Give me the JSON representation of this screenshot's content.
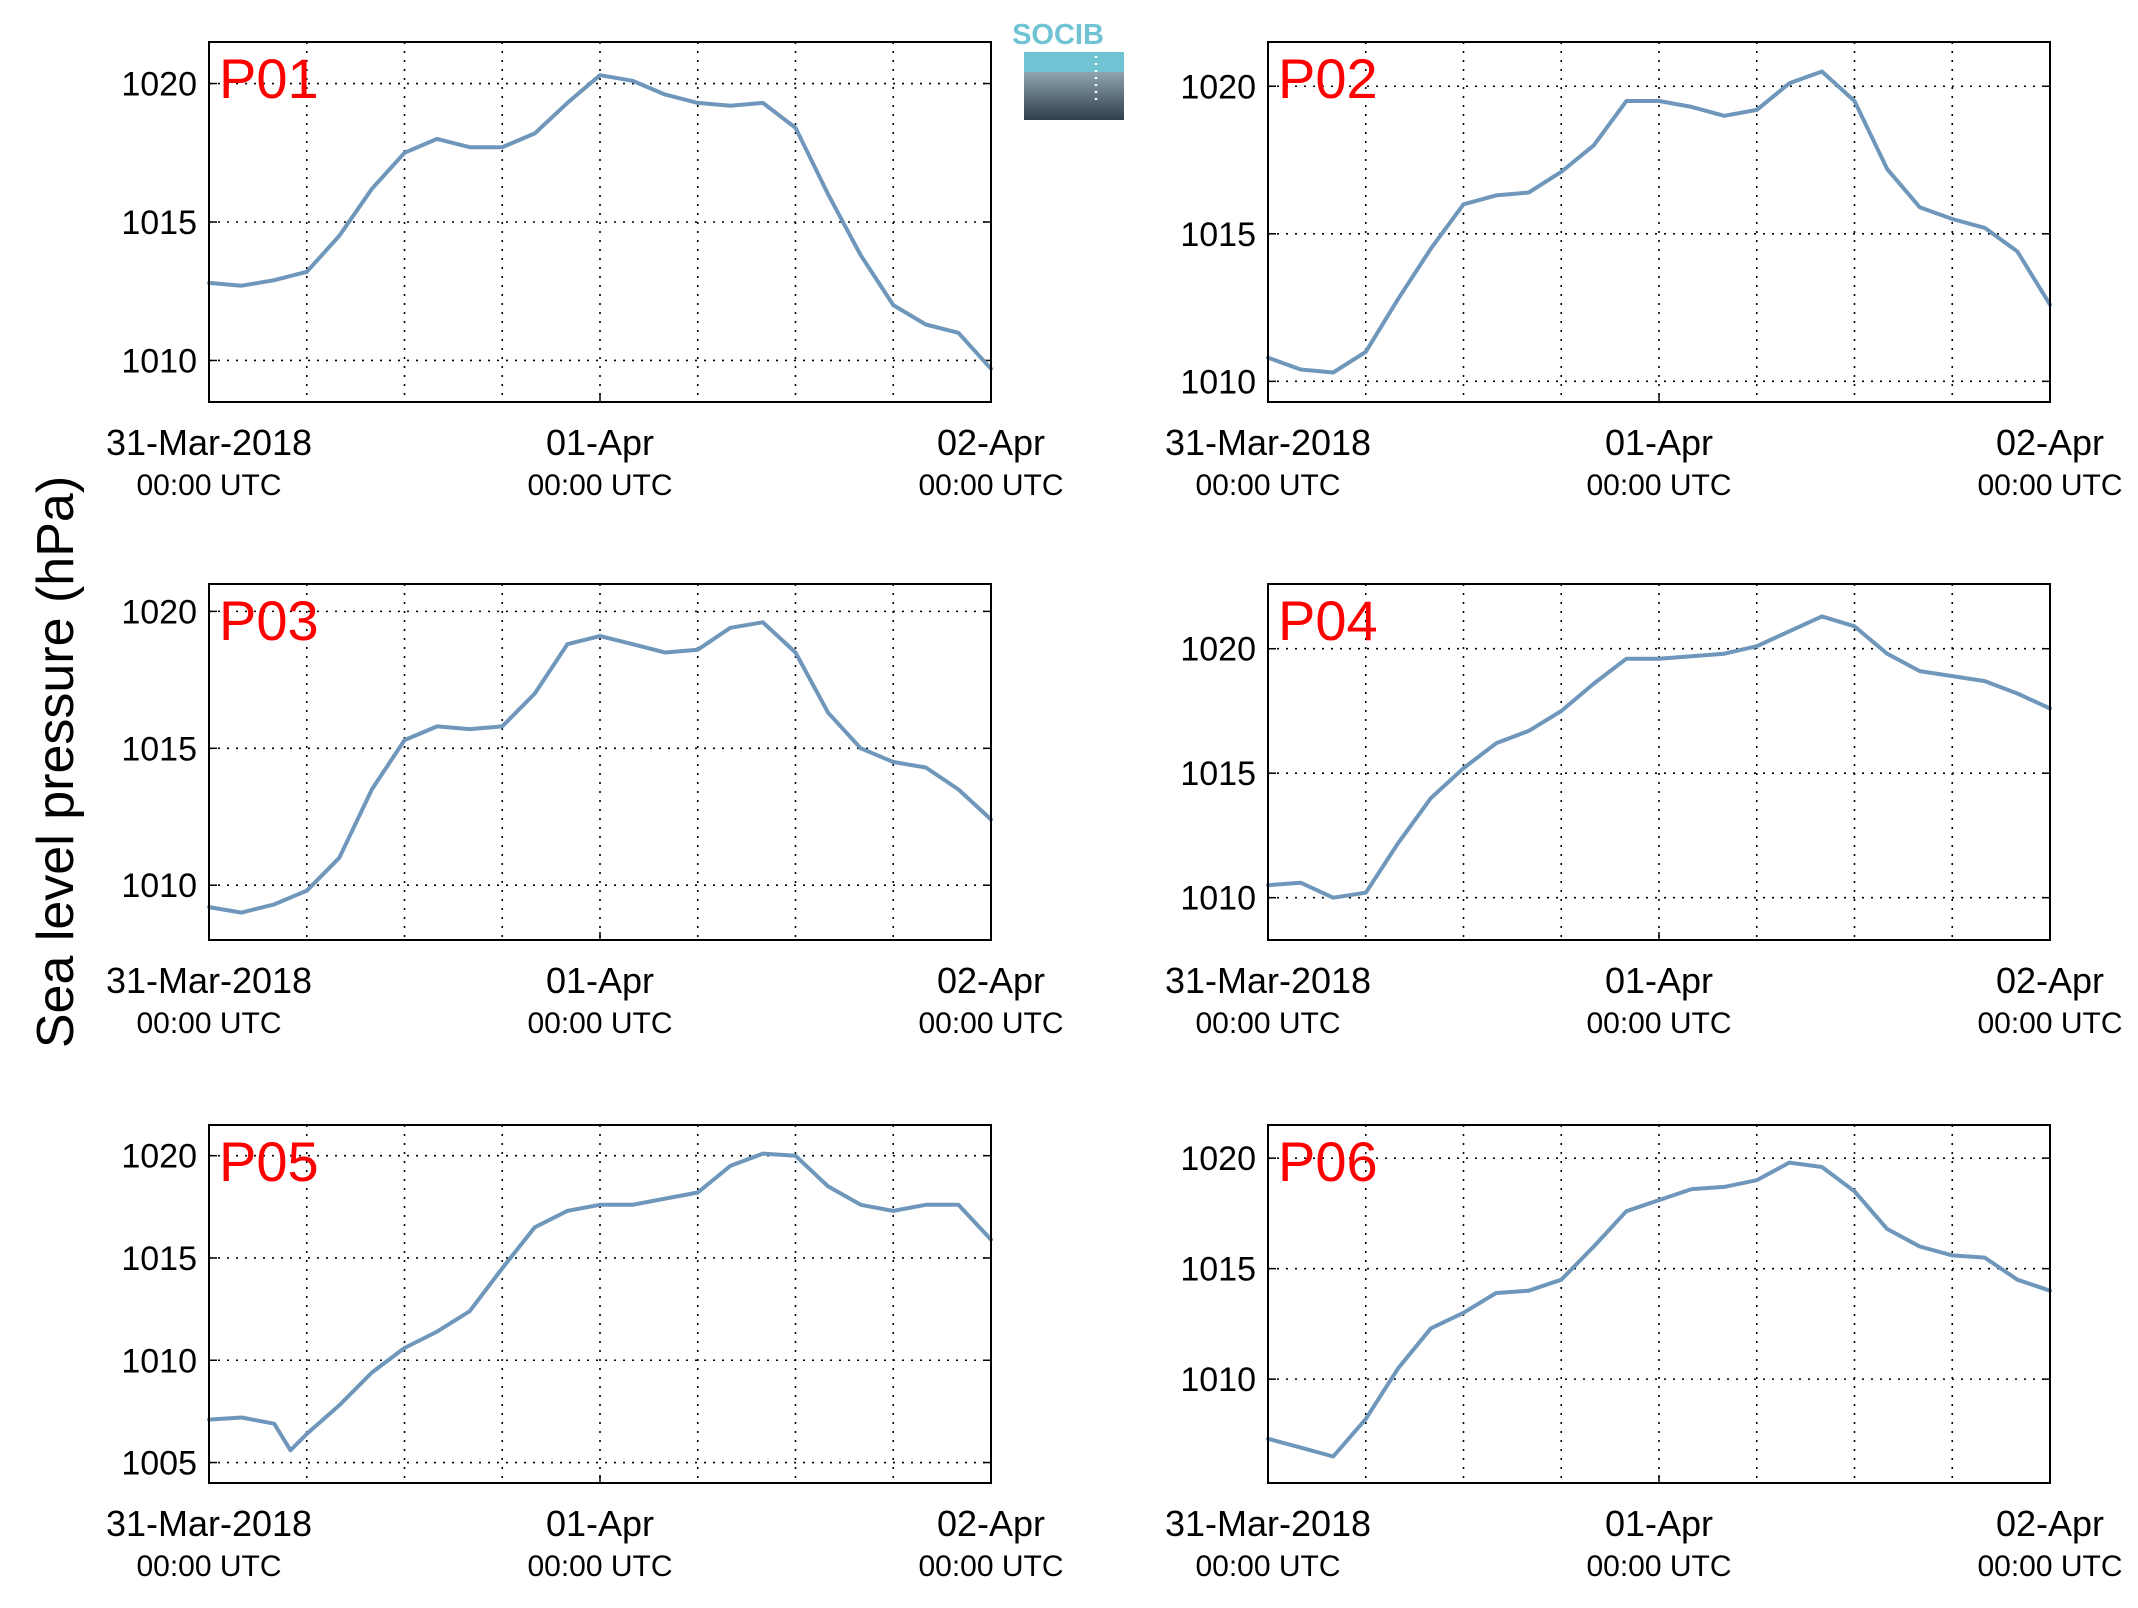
{
  "figure": {
    "ylabel": "Sea level pressure (hPa)",
    "logo_text": "SOCIB",
    "colors": {
      "line": "#6f97bb",
      "panel_label": "#ff0000",
      "logo_top": "#6fc3d3",
      "logo_bottom": "#2e3e4c"
    }
  },
  "chart_data": [
    {
      "type": "line",
      "panel_label": "P01",
      "x_ticks": [
        {
          "date": "31-Mar-2018",
          "time": "00:00 UTC"
        },
        {
          "date": "01-Apr",
          "time": "00:00 UTC"
        },
        {
          "date": "02-Apr",
          "time": "00:00 UTC"
        }
      ],
      "xlim": [
        "2018-03-31T00:00Z",
        "2018-04-02T00:00Z"
      ],
      "x_grid_hours": [
        6,
        12,
        18,
        24,
        30,
        36,
        42
      ],
      "yticks": [
        1010,
        1015,
        1020
      ],
      "ylim": [
        1008.5,
        1021.5
      ],
      "grid": true,
      "series": [
        {
          "x": [
            "2018-03-31T00:00Z",
            "2018-03-31T02:00Z",
            "2018-03-31T04:00Z",
            "2018-03-31T06:00Z",
            "2018-03-31T08:00Z",
            "2018-03-31T10:00Z",
            "2018-03-31T12:00Z",
            "2018-03-31T14:00Z",
            "2018-03-31T16:00Z",
            "2018-03-31T18:00Z",
            "2018-03-31T20:00Z",
            "2018-03-31T22:00Z",
            "2018-04-01T00:00Z",
            "2018-04-01T02:00Z",
            "2018-04-01T04:00Z",
            "2018-04-01T06:00Z",
            "2018-04-01T08:00Z",
            "2018-04-01T10:00Z",
            "2018-04-01T12:00Z",
            "2018-04-01T14:00Z",
            "2018-04-01T16:00Z",
            "2018-04-01T18:00Z",
            "2018-04-01T20:00Z",
            "2018-04-01T22:00Z",
            "2018-04-02T00:00Z"
          ],
          "y": [
            1012.8,
            1012.7,
            1012.9,
            1013.2,
            1014.5,
            1016.2,
            1017.5,
            1018.0,
            1017.7,
            1017.7,
            1018.2,
            1019.3,
            1020.3,
            1020.1,
            1019.6,
            1019.3,
            1019.2,
            1019.3,
            1018.4,
            1016.0,
            1013.8,
            1012.0,
            1011.3,
            1011.0,
            1009.7
          ]
        }
      ]
    },
    {
      "type": "line",
      "panel_label": "P02",
      "x_ticks": [
        {
          "date": "31-Mar-2018",
          "time": "00:00 UTC"
        },
        {
          "date": "01-Apr",
          "time": "00:00 UTC"
        },
        {
          "date": "02-Apr",
          "time": "00:00 UTC"
        }
      ],
      "xlim": [
        "2018-03-31T00:00Z",
        "2018-04-02T00:00Z"
      ],
      "x_grid_hours": [
        6,
        12,
        18,
        24,
        30,
        36,
        42
      ],
      "yticks": [
        1010,
        1015,
        1020
      ],
      "ylim": [
        1009.3,
        1021.5
      ],
      "grid": true,
      "series": [
        {
          "x": [
            "2018-03-31T00:00Z",
            "2018-03-31T02:00Z",
            "2018-03-31T04:00Z",
            "2018-03-31T06:00Z",
            "2018-03-31T08:00Z",
            "2018-03-31T10:00Z",
            "2018-03-31T12:00Z",
            "2018-03-31T14:00Z",
            "2018-03-31T16:00Z",
            "2018-03-31T18:00Z",
            "2018-03-31T20:00Z",
            "2018-03-31T22:00Z",
            "2018-04-01T00:00Z",
            "2018-04-01T02:00Z",
            "2018-04-01T04:00Z",
            "2018-04-01T06:00Z",
            "2018-04-01T08:00Z",
            "2018-04-01T10:00Z",
            "2018-04-01T12:00Z",
            "2018-04-01T14:00Z",
            "2018-04-01T16:00Z",
            "2018-04-01T18:00Z",
            "2018-04-01T20:00Z",
            "2018-04-01T22:00Z",
            "2018-04-02T00:00Z"
          ],
          "y": [
            1010.8,
            1010.4,
            1010.3,
            1011.0,
            1012.8,
            1014.5,
            1016.0,
            1016.3,
            1016.4,
            1017.1,
            1018.0,
            1019.5,
            1019.5,
            1019.3,
            1019.0,
            1019.2,
            1020.1,
            1020.5,
            1019.5,
            1017.2,
            1015.9,
            1015.5,
            1015.2,
            1014.4,
            1012.6
          ]
        }
      ]
    },
    {
      "type": "line",
      "panel_label": "P03",
      "x_ticks": [
        {
          "date": "31-Mar-2018",
          "time": "00:00 UTC"
        },
        {
          "date": "01-Apr",
          "time": "00:00 UTC"
        },
        {
          "date": "02-Apr",
          "time": "00:00 UTC"
        }
      ],
      "xlim": [
        "2018-03-31T00:00Z",
        "2018-04-02T00:00Z"
      ],
      "x_grid_hours": [
        6,
        12,
        18,
        24,
        30,
        36,
        42
      ],
      "yticks": [
        1010,
        1015,
        1020
      ],
      "ylim": [
        1008.0,
        1021.0
      ],
      "grid": true,
      "series": [
        {
          "x": [
            "2018-03-31T00:00Z",
            "2018-03-31T02:00Z",
            "2018-03-31T04:00Z",
            "2018-03-31T06:00Z",
            "2018-03-31T08:00Z",
            "2018-03-31T10:00Z",
            "2018-03-31T12:00Z",
            "2018-03-31T14:00Z",
            "2018-03-31T16:00Z",
            "2018-03-31T18:00Z",
            "2018-03-31T20:00Z",
            "2018-03-31T22:00Z",
            "2018-04-01T00:00Z",
            "2018-04-01T02:00Z",
            "2018-04-01T04:00Z",
            "2018-04-01T06:00Z",
            "2018-04-01T08:00Z",
            "2018-04-01T10:00Z",
            "2018-04-01T12:00Z",
            "2018-04-01T14:00Z",
            "2018-04-01T16:00Z",
            "2018-04-01T18:00Z",
            "2018-04-01T20:00Z",
            "2018-04-01T22:00Z",
            "2018-04-02T00:00Z"
          ],
          "y": [
            1009.2,
            1009.0,
            1009.3,
            1009.8,
            1011.0,
            1013.5,
            1015.3,
            1015.8,
            1015.7,
            1015.8,
            1017.0,
            1018.8,
            1019.1,
            1018.8,
            1018.5,
            1018.6,
            1019.4,
            1019.6,
            1018.5,
            1016.3,
            1015.0,
            1014.5,
            1014.3,
            1013.5,
            1012.4
          ]
        }
      ]
    },
    {
      "type": "line",
      "panel_label": "P04",
      "x_ticks": [
        {
          "date": "31-Mar-2018",
          "time": "00:00 UTC"
        },
        {
          "date": "01-Apr",
          "time": "00:00 UTC"
        },
        {
          "date": "02-Apr",
          "time": "00:00 UTC"
        }
      ],
      "xlim": [
        "2018-03-31T00:00Z",
        "2018-04-02T00:00Z"
      ],
      "x_grid_hours": [
        6,
        12,
        18,
        24,
        30,
        36,
        42
      ],
      "yticks": [
        1010,
        1015,
        1020
      ],
      "ylim": [
        1008.3,
        1022.6
      ],
      "grid": true,
      "series": [
        {
          "x": [
            "2018-03-31T00:00Z",
            "2018-03-31T02:00Z",
            "2018-03-31T04:00Z",
            "2018-03-31T06:00Z",
            "2018-03-31T08:00Z",
            "2018-03-31T10:00Z",
            "2018-03-31T12:00Z",
            "2018-03-31T14:00Z",
            "2018-03-31T16:00Z",
            "2018-03-31T18:00Z",
            "2018-03-31T20:00Z",
            "2018-03-31T22:00Z",
            "2018-04-01T00:00Z",
            "2018-04-01T02:00Z",
            "2018-04-01T04:00Z",
            "2018-04-01T06:00Z",
            "2018-04-01T08:00Z",
            "2018-04-01T10:00Z",
            "2018-04-01T12:00Z",
            "2018-04-01T14:00Z",
            "2018-04-01T16:00Z",
            "2018-04-01T18:00Z",
            "2018-04-01T20:00Z",
            "2018-04-01T22:00Z",
            "2018-04-02T00:00Z"
          ],
          "y": [
            1010.5,
            1010.6,
            1010.0,
            1010.2,
            1012.2,
            1014.0,
            1015.2,
            1016.2,
            1016.7,
            1017.5,
            1018.6,
            1019.6,
            1019.6,
            1019.7,
            1019.8,
            1020.1,
            1020.7,
            1021.3,
            1020.9,
            1019.8,
            1019.1,
            1018.9,
            1018.7,
            1018.2,
            1017.6
          ]
        }
      ]
    },
    {
      "type": "line",
      "panel_label": "P05",
      "x_ticks": [
        {
          "date": "31-Mar-2018",
          "time": "00:00 UTC"
        },
        {
          "date": "01-Apr",
          "time": "00:00 UTC"
        },
        {
          "date": "02-Apr",
          "time": "00:00 UTC"
        }
      ],
      "xlim": [
        "2018-03-31T00:00Z",
        "2018-04-02T00:00Z"
      ],
      "x_grid_hours": [
        6,
        12,
        18,
        24,
        30,
        36,
        42
      ],
      "yticks": [
        1005,
        1010,
        1015,
        1020
      ],
      "ylim": [
        1004.0,
        1021.5
      ],
      "grid": true,
      "series": [
        {
          "x": [
            "2018-03-31T00:00Z",
            "2018-03-31T02:00Z",
            "2018-03-31T04:00Z",
            "2018-03-31T05:00Z",
            "2018-03-31T06:00Z",
            "2018-03-31T08:00Z",
            "2018-03-31T10:00Z",
            "2018-03-31T12:00Z",
            "2018-03-31T14:00Z",
            "2018-03-31T16:00Z",
            "2018-03-31T18:00Z",
            "2018-03-31T20:00Z",
            "2018-03-31T22:00Z",
            "2018-04-01T00:00Z",
            "2018-04-01T02:00Z",
            "2018-04-01T04:00Z",
            "2018-04-01T06:00Z",
            "2018-04-01T08:00Z",
            "2018-04-01T10:00Z",
            "2018-04-01T12:00Z",
            "2018-04-01T14:00Z",
            "2018-04-01T16:00Z",
            "2018-04-01T18:00Z",
            "2018-04-01T20:00Z",
            "2018-04-01T22:00Z",
            "2018-04-02T00:00Z"
          ],
          "y": [
            1007.1,
            1007.2,
            1006.9,
            1005.6,
            1006.4,
            1007.8,
            1009.4,
            1010.6,
            1011.4,
            1012.4,
            1014.5,
            1016.5,
            1017.3,
            1017.6,
            1017.6,
            1017.9,
            1018.2,
            1019.5,
            1020.1,
            1020.0,
            1018.5,
            1017.6,
            1017.3,
            1017.6,
            1017.6,
            1015.9
          ]
        }
      ]
    },
    {
      "type": "line",
      "panel_label": "P06",
      "x_ticks": [
        {
          "date": "31-Mar-2018",
          "time": "00:00 UTC"
        },
        {
          "date": "01-Apr",
          "time": "00:00 UTC"
        },
        {
          "date": "02-Apr",
          "time": "00:00 UTC"
        }
      ],
      "xlim": [
        "2018-03-31T00:00Z",
        "2018-04-02T00:00Z"
      ],
      "x_grid_hours": [
        6,
        12,
        18,
        24,
        30,
        36,
        42
      ],
      "yticks": [
        1010,
        1015,
        1020
      ],
      "ylim": [
        1005.3,
        1021.5
      ],
      "grid": true,
      "series": [
        {
          "x": [
            "2018-03-31T00:00Z",
            "2018-03-31T02:00Z",
            "2018-03-31T04:00Z",
            "2018-03-31T06:00Z",
            "2018-03-31T08:00Z",
            "2018-03-31T10:00Z",
            "2018-03-31T12:00Z",
            "2018-03-31T14:00Z",
            "2018-03-31T16:00Z",
            "2018-03-31T18:00Z",
            "2018-03-31T20:00Z",
            "2018-03-31T22:00Z",
            "2018-04-01T00:00Z",
            "2018-04-01T02:00Z",
            "2018-04-01T04:00Z",
            "2018-04-01T06:00Z",
            "2018-04-01T08:00Z",
            "2018-04-01T10:00Z",
            "2018-04-01T12:00Z",
            "2018-04-01T14:00Z",
            "2018-04-01T16:00Z",
            "2018-04-01T18:00Z",
            "2018-04-01T20:00Z",
            "2018-04-01T22:00Z",
            "2018-04-02T00:00Z"
          ],
          "y": [
            1007.3,
            1006.9,
            1006.5,
            1008.2,
            1010.5,
            1012.3,
            1013.0,
            1013.9,
            1014.0,
            1014.5,
            1016.0,
            1017.6,
            1018.1,
            1018.6,
            1018.7,
            1019.0,
            1019.8,
            1019.6,
            1018.5,
            1016.8,
            1016.0,
            1015.6,
            1015.5,
            1014.5,
            1014.0
          ]
        }
      ]
    }
  ]
}
